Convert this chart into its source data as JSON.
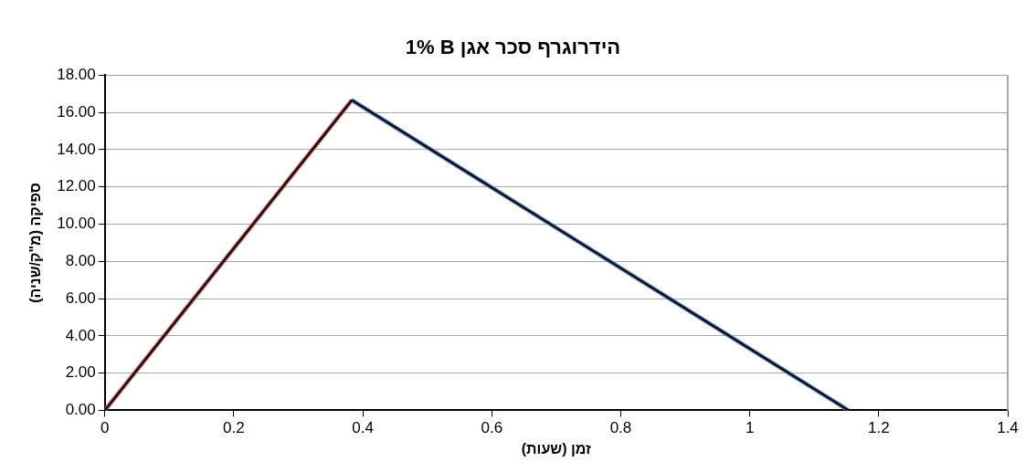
{
  "chart_data": {
    "type": "line",
    "title": "1% B הידרוגרף סכר אגן",
    "xlabel": "זמן (שעות)",
    "ylabel": "ספיקה (מ\"ק/שניה)",
    "series": [
      {
        "color": "#c0504d",
        "x": [
          0,
          0.383
        ],
        "values": [
          0,
          16.66
        ]
      },
      {
        "color": "#4f81bd",
        "x": [
          0.383,
          1.153
        ],
        "values": [
          16.66,
          0
        ]
      },
      {
        "color": "#000000",
        "x": [
          0,
          0.383,
          1.153
        ],
        "values": [
          0,
          16.66,
          0
        ]
      }
    ],
    "xlim": [
      0,
      1.4
    ],
    "xticks": [
      0,
      0.2,
      0.4,
      0.6,
      0.8,
      1,
      1.2,
      1.4
    ],
    "ylim": [
      0,
      18
    ],
    "yticks": [
      {
        "value": 0,
        "label": "0.00"
      },
      {
        "value": 2,
        "label": "2.00"
      },
      {
        "value": 4,
        "label": "4.00"
      },
      {
        "value": 6,
        "label": "6.00"
      },
      {
        "value": 8,
        "label": "8.00"
      },
      {
        "value": 10,
        "label": "10.00"
      },
      {
        "value": 12,
        "label": "12.00"
      },
      {
        "value": 14,
        "label": "14.00"
      },
      {
        "value": 16,
        "label": "16.00"
      },
      {
        "value": 18,
        "label": "18.00"
      }
    ],
    "grid": "y",
    "legend": false,
    "marker": "none",
    "line_style": "solid"
  }
}
